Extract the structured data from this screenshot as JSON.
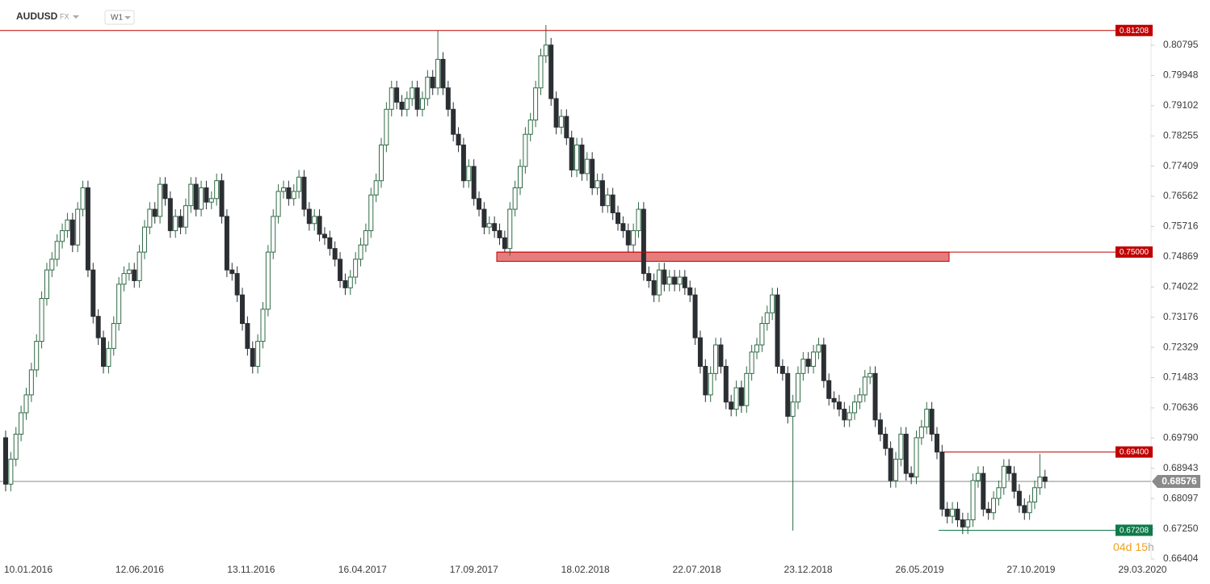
{
  "chart_data": {
    "type": "candlestick",
    "symbol": "AUDUSD",
    "market": "FX",
    "timeframe": "W1",
    "categories": [
      "10.01.2016",
      null,
      null,
      null,
      null,
      null,
      null,
      null,
      null,
      null,
      null,
      null,
      null,
      null,
      null,
      null,
      null,
      null,
      null,
      null,
      null,
      null,
      "12.06.2016",
      null,
      null,
      null,
      null,
      null,
      null,
      null,
      null,
      null,
      null,
      null,
      null,
      null,
      null,
      null,
      null,
      null,
      null,
      null,
      null,
      null,
      "13.11.2016",
      null,
      null,
      null,
      null,
      null,
      null,
      null,
      null,
      null,
      null,
      null,
      null,
      null,
      null,
      null,
      null,
      null,
      null,
      null,
      null,
      null,
      "16.04.2017",
      null,
      null,
      null,
      null,
      null,
      null,
      null,
      null,
      null,
      null,
      null,
      null,
      null,
      null,
      null,
      null,
      null,
      null,
      null,
      null,
      null,
      "17.09.2017",
      null,
      null,
      null,
      null,
      null,
      null,
      null,
      null,
      null,
      null,
      null,
      null,
      null,
      null,
      null,
      null,
      null,
      null,
      null,
      null,
      null,
      "18.02.2018",
      null,
      null,
      null,
      null,
      null,
      null,
      null,
      null,
      null,
      null,
      null,
      null,
      null,
      null,
      null,
      null,
      null,
      null,
      null,
      null,
      null,
      "22.07.2018",
      null,
      null,
      null,
      null,
      null,
      null,
      null,
      null,
      null,
      null,
      null,
      null,
      null,
      null,
      null,
      null,
      null,
      null,
      null,
      null,
      null,
      "23.12.2018",
      null,
      null,
      null,
      null,
      null,
      null,
      null,
      null,
      null,
      null,
      null,
      null,
      null,
      null,
      null,
      null,
      null,
      null,
      null,
      null,
      null,
      "26.05.2019",
      null,
      null,
      null,
      null,
      null,
      null,
      null,
      null,
      null,
      null,
      null,
      null,
      null,
      null,
      null,
      null,
      null,
      null,
      null,
      null,
      null,
      "27.10.2019",
      null,
      null,
      null,
      null,
      null,
      null,
      null,
      null,
      null,
      null,
      null,
      null,
      null,
      null,
      null,
      null,
      null,
      null,
      null,
      null,
      null,
      "29.03.2020"
    ],
    "open": [
      0.698,
      0.685,
      0.692,
      0.699,
      0.705,
      0.71,
      0.717,
      0.725,
      0.737,
      0.745,
      0.748,
      0.753,
      0.756,
      0.759,
      0.752,
      0.762,
      0.768,
      0.745,
      0.732,
      0.726,
      0.718,
      0.723,
      0.73,
      0.741,
      0.744,
      0.745,
      0.742,
      0.75,
      0.757,
      0.762,
      0.76,
      0.769,
      0.765,
      0.756,
      0.76,
      0.757,
      0.763,
      0.769,
      0.762,
      0.768,
      0.764,
      0.765,
      0.77,
      0.76,
      0.745,
      0.744,
      0.738,
      0.73,
      0.723,
      0.718,
      0.725,
      0.734,
      0.75,
      0.76,
      0.767,
      0.768,
      0.765,
      0.767,
      0.771,
      0.762,
      0.758,
      0.76,
      0.755,
      0.754,
      0.751,
      0.748,
      0.742,
      0.74,
      0.743,
      0.748,
      0.752,
      0.756,
      0.766,
      0.77,
      0.78,
      0.79,
      0.796,
      0.792,
      0.79,
      0.793,
      0.796,
      0.79,
      0.793,
      0.799,
      0.796,
      0.804,
      0.796,
      0.79,
      0.783,
      0.78,
      0.77,
      0.774,
      0.765,
      0.762,
      0.757,
      0.758,
      0.756,
      0.754,
      0.751,
      0.762,
      0.768,
      0.774,
      0.783,
      0.787,
      0.796,
      0.805,
      0.808,
      0.793,
      0.785,
      0.788,
      0.782,
      0.773,
      0.78,
      0.772,
      0.776,
      0.768,
      0.77,
      0.763,
      0.766,
      0.761,
      0.758,
      0.756,
      0.752,
      0.756,
      0.762,
      0.744,
      0.742,
      0.738,
      0.745,
      0.741,
      0.743,
      0.741,
      0.743,
      0.74,
      0.738,
      0.726,
      0.718,
      0.71,
      0.716,
      0.724,
      0.718,
      0.708,
      0.706,
      0.712,
      0.707,
      0.716,
      0.722,
      0.724,
      0.73,
      0.733,
      0.738,
      0.718,
      0.716,
      0.704,
      0.708,
      0.716,
      0.72,
      0.718,
      0.722,
      0.724,
      0.714,
      0.709,
      0.708,
      0.706,
      0.703,
      0.705,
      0.708,
      0.71,
      0.715,
      0.716,
      0.703,
      0.699,
      0.695,
      0.686,
      0.692,
      0.699,
      0.688,
      0.687,
      0.698,
      0.701,
      0.706,
      0.699,
      0.694,
      0.678,
      0.676,
      0.678,
      0.675,
      0.673,
      0.675,
      0.686,
      0.688,
      0.678,
      0.677,
      0.681,
      0.684,
      0.69,
      0.688,
      0.683,
      0.679,
      0.677,
      0.68,
      0.684,
      0.687,
      null,
      null,
      null,
      null,
      null,
      null,
      null,
      null,
      null,
      null,
      null,
      null,
      null,
      null,
      null,
      null,
      null,
      null
    ],
    "high": [
      0.7,
      0.694,
      0.701,
      0.707,
      0.712,
      0.719,
      0.727,
      0.739,
      0.747,
      0.75,
      0.755,
      0.758,
      0.761,
      0.761,
      0.764,
      0.77,
      0.77,
      0.747,
      0.734,
      0.728,
      0.725,
      0.732,
      0.743,
      0.746,
      0.747,
      0.747,
      0.752,
      0.759,
      0.764,
      0.764,
      0.771,
      0.771,
      0.767,
      0.762,
      0.762,
      0.765,
      0.771,
      0.771,
      0.77,
      0.77,
      0.767,
      0.772,
      0.772,
      0.762,
      0.747,
      0.746,
      0.74,
      0.732,
      0.725,
      0.727,
      0.736,
      0.752,
      0.762,
      0.769,
      0.77,
      0.77,
      0.769,
      0.773,
      0.773,
      0.764,
      0.762,
      0.762,
      0.757,
      0.756,
      0.753,
      0.75,
      0.744,
      0.745,
      0.75,
      0.754,
      0.758,
      0.768,
      0.772,
      0.782,
      0.792,
      0.798,
      0.798,
      0.794,
      0.795,
      0.798,
      0.798,
      0.795,
      0.801,
      0.801,
      0.8121,
      0.806,
      0.798,
      0.792,
      0.785,
      0.782,
      0.776,
      0.776,
      0.767,
      0.764,
      0.76,
      0.76,
      0.758,
      0.756,
      0.764,
      0.77,
      0.776,
      0.785,
      0.789,
      0.798,
      0.807,
      0.8136,
      0.81,
      0.795,
      0.79,
      0.79,
      0.784,
      0.782,
      0.782,
      0.778,
      0.778,
      0.772,
      0.772,
      0.768,
      0.768,
      0.763,
      0.76,
      0.758,
      0.758,
      0.764,
      0.764,
      0.746,
      0.744,
      0.747,
      0.747,
      0.745,
      0.745,
      0.745,
      0.745,
      0.742,
      0.74,
      0.728,
      0.72,
      0.718,
      0.726,
      0.726,
      0.72,
      0.71,
      0.714,
      0.714,
      0.718,
      0.724,
      0.726,
      0.732,
      0.735,
      0.74,
      0.74,
      0.72,
      0.718,
      0.71,
      0.718,
      0.722,
      0.722,
      0.724,
      0.726,
      0.726,
      0.716,
      0.711,
      0.71,
      0.708,
      0.707,
      0.71,
      0.712,
      0.717,
      0.718,
      0.718,
      0.705,
      0.701,
      0.697,
      0.694,
      0.701,
      0.701,
      0.69,
      0.7,
      0.703,
      0.708,
      0.708,
      0.701,
      0.696,
      0.68,
      0.68,
      0.68,
      0.677,
      0.677,
      0.688,
      0.69,
      0.69,
      0.68,
      0.683,
      0.686,
      0.692,
      0.692,
      0.69,
      0.685,
      0.681,
      0.682,
      0.686,
      0.6935,
      0.689,
      null,
      null,
      null,
      null,
      null,
      null,
      null,
      null,
      null,
      null,
      null,
      null,
      null,
      null,
      null,
      null,
      null,
      null
    ],
    "low": [
      0.683,
      0.683,
      0.69,
      0.697,
      0.703,
      0.708,
      0.715,
      0.723,
      0.735,
      0.743,
      0.746,
      0.751,
      0.754,
      0.75,
      0.75,
      0.76,
      0.743,
      0.73,
      0.724,
      0.716,
      0.716,
      0.721,
      0.728,
      0.739,
      0.742,
      0.74,
      0.74,
      0.748,
      0.755,
      0.758,
      0.758,
      0.763,
      0.754,
      0.754,
      0.755,
      0.755,
      0.761,
      0.76,
      0.76,
      0.762,
      0.762,
      0.763,
      0.758,
      0.743,
      0.742,
      0.736,
      0.728,
      0.721,
      0.716,
      0.716,
      0.723,
      0.732,
      0.748,
      0.758,
      0.765,
      0.763,
      0.763,
      0.765,
      0.76,
      0.756,
      0.756,
      0.753,
      0.752,
      0.749,
      0.746,
      0.74,
      0.738,
      0.738,
      0.741,
      0.746,
      0.75,
      0.754,
      0.764,
      0.768,
      0.778,
      0.788,
      0.79,
      0.788,
      0.788,
      0.791,
      0.788,
      0.788,
      0.791,
      0.794,
      0.794,
      0.794,
      0.788,
      0.781,
      0.778,
      0.768,
      0.768,
      0.763,
      0.76,
      0.755,
      0.755,
      0.754,
      0.752,
      0.75,
      0.749,
      0.76,
      0.766,
      0.772,
      0.781,
      0.785,
      0.794,
      0.803,
      0.791,
      0.783,
      0.783,
      0.78,
      0.771,
      0.771,
      0.77,
      0.77,
      0.766,
      0.766,
      0.761,
      0.761,
      0.759,
      0.756,
      0.754,
      0.75,
      0.75,
      0.754,
      0.742,
      0.74,
      0.736,
      0.736,
      0.739,
      0.739,
      0.739,
      0.739,
      0.738,
      0.736,
      0.724,
      0.716,
      0.708,
      0.708,
      0.714,
      0.716,
      0.706,
      0.704,
      0.704,
      0.705,
      0.705,
      0.714,
      0.72,
      0.722,
      0.728,
      0.731,
      0.716,
      0.714,
      0.702,
      0.672,
      0.706,
      0.714,
      0.716,
      0.716,
      0.72,
      0.712,
      0.707,
      0.706,
      0.704,
      0.701,
      0.701,
      0.703,
      0.706,
      0.708,
      0.713,
      0.701,
      0.697,
      0.693,
      0.684,
      0.684,
      0.69,
      0.686,
      0.685,
      0.685,
      0.696,
      0.699,
      0.697,
      0.692,
      0.676,
      0.674,
      0.674,
      0.673,
      0.671,
      0.671,
      0.673,
      0.684,
      0.676,
      0.675,
      0.675,
      0.679,
      0.682,
      0.686,
      0.681,
      0.677,
      0.675,
      0.675,
      0.678,
      0.682,
      0.6838,
      null,
      null,
      null,
      null,
      null,
      null,
      null,
      null,
      null,
      null,
      null,
      null,
      null,
      null,
      null,
      null,
      null,
      null
    ],
    "close": [
      0.685,
      0.692,
      0.699,
      0.705,
      0.71,
      0.717,
      0.725,
      0.737,
      0.745,
      0.748,
      0.753,
      0.756,
      0.759,
      0.752,
      0.762,
      0.768,
      0.745,
      0.732,
      0.726,
      0.718,
      0.723,
      0.73,
      0.741,
      0.744,
      0.745,
      0.742,
      0.75,
      0.757,
      0.762,
      0.76,
      0.769,
      0.765,
      0.756,
      0.76,
      0.757,
      0.763,
      0.769,
      0.762,
      0.768,
      0.764,
      0.765,
      0.77,
      0.76,
      0.745,
      0.744,
      0.738,
      0.73,
      0.723,
      0.718,
      0.725,
      0.734,
      0.75,
      0.76,
      0.767,
      0.768,
      0.765,
      0.767,
      0.771,
      0.762,
      0.758,
      0.76,
      0.755,
      0.754,
      0.751,
      0.748,
      0.742,
      0.74,
      0.743,
      0.748,
      0.752,
      0.756,
      0.766,
      0.77,
      0.78,
      0.79,
      0.796,
      0.792,
      0.79,
      0.793,
      0.796,
      0.79,
      0.793,
      0.799,
      0.796,
      0.804,
      0.796,
      0.79,
      0.783,
      0.78,
      0.77,
      0.774,
      0.765,
      0.762,
      0.757,
      0.758,
      0.756,
      0.754,
      0.751,
      0.762,
      0.768,
      0.774,
      0.783,
      0.787,
      0.796,
      0.805,
      0.808,
      0.793,
      0.785,
      0.788,
      0.782,
      0.773,
      0.78,
      0.772,
      0.776,
      0.768,
      0.77,
      0.763,
      0.766,
      0.761,
      0.758,
      0.756,
      0.752,
      0.756,
      0.762,
      0.744,
      0.742,
      0.738,
      0.745,
      0.741,
      0.743,
      0.741,
      0.743,
      0.74,
      0.738,
      0.726,
      0.718,
      0.71,
      0.716,
      0.724,
      0.718,
      0.708,
      0.706,
      0.712,
      0.707,
      0.716,
      0.722,
      0.724,
      0.73,
      0.733,
      0.738,
      0.718,
      0.716,
      0.704,
      0.708,
      0.716,
      0.72,
      0.718,
      0.722,
      0.724,
      0.714,
      0.709,
      0.708,
      0.706,
      0.703,
      0.705,
      0.708,
      0.71,
      0.715,
      0.716,
      0.703,
      0.699,
      0.695,
      0.686,
      0.692,
      0.699,
      0.688,
      0.687,
      0.698,
      0.701,
      0.706,
      0.699,
      0.694,
      0.678,
      0.676,
      0.678,
      0.675,
      0.673,
      0.675,
      0.686,
      0.688,
      0.678,
      0.677,
      0.681,
      0.684,
      0.69,
      0.688,
      0.683,
      0.679,
      0.677,
      0.68,
      0.684,
      0.687,
      0.68576,
      null,
      null,
      null,
      null,
      null,
      null,
      null,
      null,
      null,
      null,
      null,
      null,
      null,
      null,
      null,
      null,
      null,
      null
    ],
    "up_color": "#2f6b45",
    "down_color": "#2b2f33",
    "ylim": [
      0.66223,
      0.81383
    ],
    "yticks": [
      0.80795,
      0.79948,
      0.79102,
      0.78255,
      0.77409,
      0.76562,
      0.75716,
      0.74869,
      0.74022,
      0.73176,
      0.72329,
      0.71483,
      0.70636,
      {
        "value": 0.6979,
        "label": "0.69790"
      },
      0.68943,
      0.68097,
      {
        "value": 0.6725,
        "label": "0.67250"
      },
      0.66404
    ],
    "levels": [
      {
        "value": 0.81208,
        "color": "#c00000"
      },
      {
        "value": 0.75,
        "label": "0.75000",
        "color": "#c00000"
      },
      {
        "value": 0.694,
        "label": "0.69400",
        "color": "#c00000"
      },
      {
        "value": 0.67208,
        "color": "#0e7a4a"
      }
    ],
    "zone": {
      "values": [
        0.7474,
        0.75
      ],
      "color": "#e06666"
    },
    "current": {
      "value": 0.68576,
      "color": "#8a8a8a"
    },
    "countdown": [
      "04",
      "d",
      "15",
      "h"
    ]
  }
}
